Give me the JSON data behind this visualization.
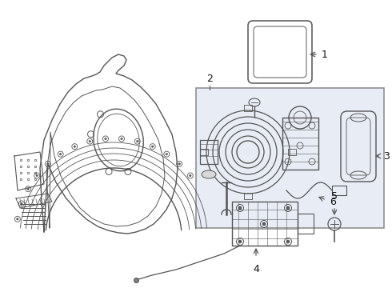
{
  "background_color": "#ffffff",
  "line_color": "#555555",
  "light_line_color": "#999999",
  "box_fill_color": "#e8edf5",
  "box_border_color": "#888888",
  "label_color": "#111111",
  "figsize": [
    4.9,
    3.6
  ],
  "dpi": 100
}
